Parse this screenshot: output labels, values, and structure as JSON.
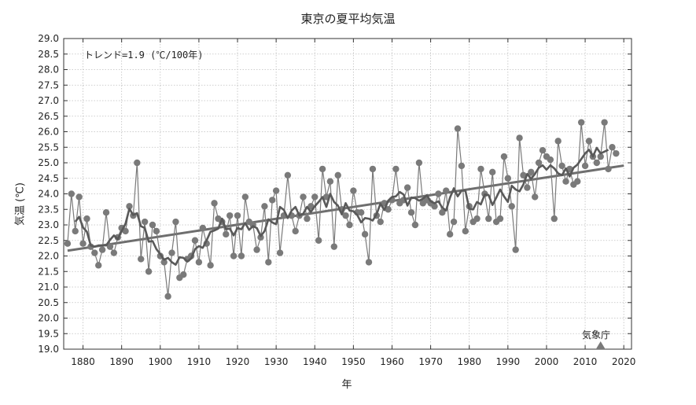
{
  "chart_data": {
    "type": "line",
    "title": "東京の夏平均気温",
    "xlabel": "年",
    "ylabel": "気温 (℃)",
    "xlim": [
      1875,
      2022
    ],
    "ylim": [
      19.0,
      29.0
    ],
    "x_ticks": [
      1880,
      1890,
      1900,
      1910,
      1920,
      1930,
      1940,
      1950,
      1960,
      1970,
      1980,
      1990,
      2000,
      2010,
      2020
    ],
    "y_ticks": [
      "19.0",
      "19.5",
      "20.0",
      "20.5",
      "21.0",
      "21.5",
      "22.0",
      "22.5",
      "23.0",
      "23.5",
      "24.0",
      "24.5",
      "25.0",
      "25.5",
      "26.0",
      "26.5",
      "27.0",
      "27.5",
      "28.0",
      "28.5",
      "29.0"
    ],
    "grid": true,
    "annotation": "トレンド=1.9 (℃/100年)",
    "credit": "気象庁",
    "colors": {
      "annual": "#7a7a7a",
      "moving_average": "#595959",
      "trend": "#6e6e6e",
      "axis": "#333333",
      "grid": "#bfbfbf"
    },
    "series": [
      {
        "kind": "annual",
        "x_start": 1876,
        "values": [
          22.4,
          24.0,
          22.8,
          23.9,
          22.4,
          23.2,
          22.3,
          22.1,
          21.7,
          22.2,
          23.4,
          22.3,
          22.1,
          22.6,
          22.9,
          22.8,
          23.6,
          23.3,
          25.0,
          21.9,
          23.1,
          21.5,
          23.0,
          22.8,
          22.0,
          21.8,
          20.7,
          22.1,
          23.1,
          21.3,
          21.4,
          21.9,
          22.0,
          22.5,
          21.8,
          22.9,
          22.4,
          21.7,
          23.7,
          23.2,
          23.1,
          22.7,
          23.3,
          22.0,
          23.3,
          22.0,
          23.9,
          23.1,
          23.0,
          22.2,
          22.6,
          23.6,
          21.8,
          23.8,
          24.1,
          22.1,
          23.3,
          24.6,
          23.3,
          22.8,
          23.3,
          23.9,
          23.2,
          23.6,
          23.9,
          22.5,
          24.8,
          23.9,
          24.4,
          22.3,
          24.6,
          23.5,
          23.3,
          23.0,
          24.1,
          23.4,
          23.4,
          22.7,
          21.8,
          24.8,
          23.3,
          23.1,
          23.7,
          23.5,
          23.8,
          24.8,
          23.7,
          23.8,
          24.2,
          23.4,
          23.0,
          25.0,
          23.7,
          23.8,
          23.7,
          23.6,
          24.0,
          23.4,
          24.1,
          22.7,
          23.1,
          26.1,
          24.9,
          22.8,
          23.6,
          23.1,
          23.2,
          24.8,
          24.0,
          23.2,
          24.7,
          23.1,
          23.2,
          25.2,
          24.5,
          23.6,
          22.2,
          25.8,
          24.6,
          24.2,
          24.7,
          23.9,
          25.0,
          25.4,
          25.2,
          25.1,
          23.2,
          25.7,
          24.9,
          24.4,
          24.8,
          24.3,
          24.4,
          26.3,
          24.9,
          25.7,
          25.2,
          25.0,
          25.2,
          26.3,
          24.8,
          25.5,
          25.3
        ]
      },
      {
        "kind": "moving_average",
        "window": 5
      },
      {
        "kind": "trend",
        "endpoints": [
          [
            1876,
            22.17
          ],
          [
            2020,
            24.91
          ]
        ]
      }
    ]
  }
}
